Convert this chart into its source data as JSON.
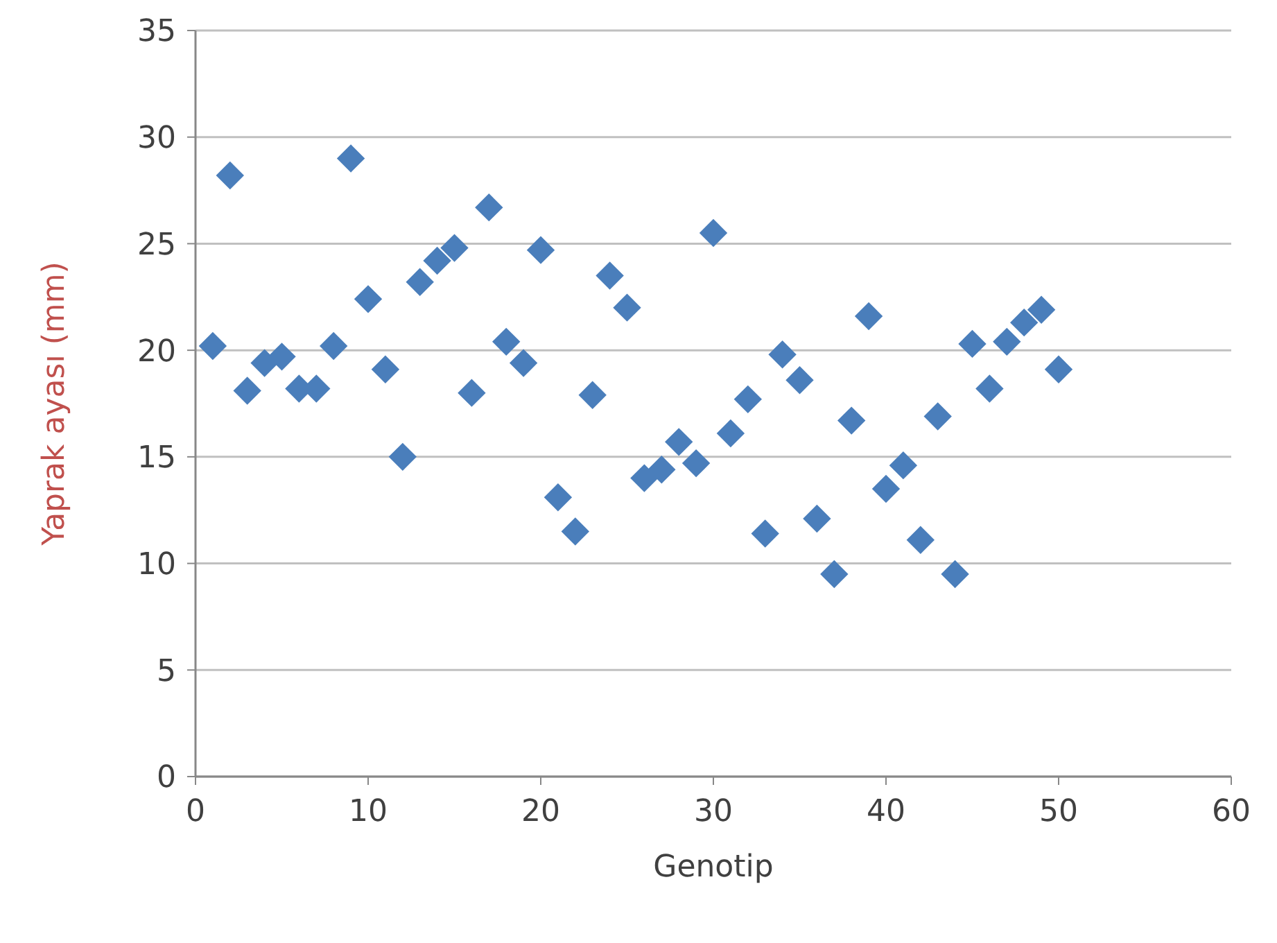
{
  "chart_data": {
    "type": "scatter",
    "xlabel": "Genotip",
    "ylabel": "Yaprak ayası (mm)",
    "x": [
      1,
      2,
      3,
      4,
      5,
      6,
      7,
      8,
      9,
      10,
      11,
      12,
      13,
      14,
      15,
      16,
      17,
      18,
      19,
      20,
      21,
      22,
      23,
      24,
      25,
      26,
      27,
      28,
      29,
      30,
      31,
      32,
      33,
      34,
      35,
      36,
      37,
      38,
      39,
      40,
      41,
      42,
      43,
      44,
      45,
      46,
      47,
      48,
      49,
      50
    ],
    "series": [
      {
        "color": "#4a7ebb",
        "values": [
          20.2,
          28.2,
          18.1,
          19.4,
          19.7,
          18.2,
          18.2,
          20.2,
          29.0,
          22.4,
          19.1,
          15.0,
          23.2,
          24.2,
          24.8,
          18.0,
          26.7,
          20.4,
          19.4,
          24.7,
          13.1,
          11.5,
          17.9,
          23.5,
          22.0,
          14.0,
          14.4,
          15.7,
          14.7,
          25.5,
          16.1,
          17.7,
          11.4,
          19.8,
          18.6,
          12.1,
          9.5,
          16.7,
          21.6,
          13.5,
          14.6,
          11.1,
          16.9,
          9.5,
          20.3,
          18.2,
          20.4,
          21.3,
          21.9,
          19.1
        ]
      }
    ],
    "xlim": [
      0,
      60
    ],
    "xticks": [
      0,
      10,
      20,
      30,
      40,
      50,
      60
    ],
    "ylim": [
      0,
      35
    ],
    "yticks": [
      0,
      5,
      10,
      15,
      20,
      25,
      30,
      35
    ],
    "grid": "y",
    "marker": "diamond"
  }
}
